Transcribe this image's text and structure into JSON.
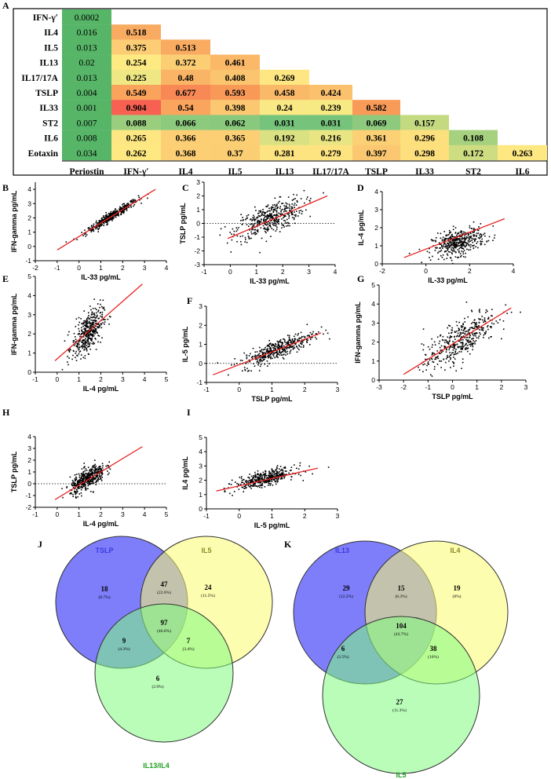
{
  "panels": {
    "A": "A",
    "B": "B",
    "C": "C",
    "D": "D",
    "E": "E",
    "F": "F",
    "G": "G",
    "H": "H",
    "I": "I",
    "J": "J",
    "K": "K"
  },
  "heatmap": {
    "row_labels": [
      "IFN-γʹ",
      "IL4",
      "IL5",
      "IL13",
      "IL17/17A",
      "TSLP",
      "IL33",
      "ST2",
      "IL6",
      "Eotaxin"
    ],
    "col_labels": [
      "Periostin",
      "IFN-γʹ",
      "IL4",
      "IL5",
      "IL13",
      "IL17/17A",
      "TSLP",
      "IL33",
      "ST2",
      "IL6"
    ],
    "cells": [
      [
        "0.0002"
      ],
      [
        "0.016",
        "0.518"
      ],
      [
        "0.013",
        "0.375",
        "0.513"
      ],
      [
        "0.02",
        "0.254",
        "0.372",
        "0.461"
      ],
      [
        "0.013",
        "0.225",
        "0.48",
        "0.408",
        "0.269"
      ],
      [
        "0.004",
        "0.549",
        "0.677",
        "0.593",
        "0.458",
        "0.424"
      ],
      [
        "0.001",
        "0.904",
        "0.54",
        "0.398",
        "0.24",
        "0.239",
        "0.582"
      ],
      [
        "0.007",
        "0.088",
        "0.066",
        "0.062",
        "0.031",
        "0.031",
        "0.069",
        "0.157"
      ],
      [
        "0.008",
        "0.265",
        "0.366",
        "0.365",
        "0.192",
        "0.216",
        "0.361",
        "0.296",
        "0.108"
      ],
      [
        "0.034",
        "0.262",
        "0.368",
        "0.37",
        "0.281",
        "0.279",
        "0.397",
        "0.298",
        "0.172",
        "0.263"
      ]
    ]
  },
  "chart_data": [
    {
      "id": "B",
      "type": "scatter",
      "xlabel": "IL-33 pg/mL",
      "ylabel": "IFN-gamma pg/mL",
      "xlim": [
        -2,
        4
      ],
      "ylim": [
        -1,
        4.5
      ],
      "xticks": [
        -2,
        -1,
        0,
        1,
        2,
        3,
        4
      ],
      "yticks": [
        -1,
        0,
        1,
        2,
        3,
        4
      ],
      "x_center": 1.5,
      "x_spread": 0.6,
      "slope": 0.95,
      "intercept": 0.7,
      "noise": 0.15,
      "fit": [
        [
          -1,
          -0.25
        ],
        [
          3.5,
          4.0
        ]
      ],
      "zero_line": false
    },
    {
      "id": "C",
      "type": "scatter",
      "xlabel": "IL-33 pg/mL",
      "ylabel": "TSLP pg/mL",
      "xlim": [
        -1,
        4
      ],
      "ylim": [
        -3,
        3
      ],
      "xticks": [
        -1,
        0,
        1,
        2,
        3,
        4
      ],
      "yticks": [
        -3,
        -2,
        -1,
        0,
        1,
        2,
        3
      ],
      "x_center": 1.5,
      "x_spread": 0.65,
      "slope": 0.7,
      "intercept": -0.7,
      "noise": 0.55,
      "fit": [
        [
          -0.1,
          -1.1
        ],
        [
          3.7,
          2.0
        ]
      ],
      "zero_line": true
    },
    {
      "id": "D",
      "type": "scatter",
      "xlabel": "IL-33 pg/mL",
      "ylabel": "IL-4 pg/mL",
      "xlim": [
        -2,
        4
      ],
      "ylim": [
        0,
        4
      ],
      "xticks": [
        -2,
        0,
        2,
        4
      ],
      "yticks": [
        0,
        1,
        2,
        3,
        4
      ],
      "x_center": 1.5,
      "x_spread": 0.6,
      "slope": 0.3,
      "intercept": 0.75,
      "noise": 0.35,
      "fit": [
        [
          -1,
          0.35
        ],
        [
          3.6,
          2.5
        ]
      ],
      "zero_line": false
    },
    {
      "id": "E",
      "type": "scatter",
      "xlabel": "IL-4 pg/mL",
      "ylabel": "IFN-gamma pg/mL",
      "xlim": [
        -1,
        5
      ],
      "ylim": [
        0,
        5
      ],
      "xticks": [
        -1,
        0,
        1,
        2,
        3,
        4,
        5
      ],
      "yticks": [
        0,
        1,
        2,
        3,
        4,
        5
      ],
      "x_center": 1.4,
      "x_spread": 0.35,
      "slope": 1.0,
      "intercept": 0.65,
      "noise": 0.5,
      "fit": [
        [
          -0.1,
          0.6
        ],
        [
          3.9,
          4.6
        ]
      ],
      "zero_line": false
    },
    {
      "id": "F",
      "type": "scatter",
      "xlabel": "TSLP pg/mL",
      "ylabel": "IL-5 pg/mL",
      "xlim": [
        -1,
        3
      ],
      "ylim": [
        -1,
        3
      ],
      "xticks": [
        -1,
        0,
        1,
        2,
        3
      ],
      "yticks": [
        -1,
        0,
        1,
        2,
        3
      ],
      "x_center": 1.2,
      "x_spread": 0.55,
      "slope": 0.68,
      "intercept": -0.05,
      "noise": 0.25,
      "fit": [
        [
          -0.8,
          -0.6
        ],
        [
          2.5,
          1.6
        ]
      ],
      "zero_line": true
    },
    {
      "id": "G",
      "type": "scatter",
      "xlabel": "TSLP pg/mL",
      "ylabel": "IFN-gamma pg/mL",
      "xlim": [
        -3,
        3
      ],
      "ylim": [
        0,
        5
      ],
      "xticks": [
        -3,
        -2,
        -1,
        0,
        1,
        2,
        3
      ],
      "yticks": [
        0,
        1,
        2,
        3,
        4,
        5
      ],
      "x_center": 0.3,
      "x_spread": 0.75,
      "slope": 0.8,
      "intercept": 1.85,
      "noise": 0.5,
      "fit": [
        [
          -2,
          0.3
        ],
        [
          2.4,
          3.8
        ]
      ],
      "zero_line": false
    },
    {
      "id": "H",
      "type": "scatter",
      "xlabel": "IL-4 pg/mL",
      "ylabel": "TSLP pg/mL",
      "xlim": [
        -1,
        5
      ],
      "ylim": [
        -2,
        4
      ],
      "xticks": [
        -1,
        0,
        1,
        2,
        3,
        4,
        5
      ],
      "yticks": [
        -2,
        -1,
        0,
        1,
        2,
        3,
        4
      ],
      "x_center": 1.4,
      "x_spread": 0.4,
      "slope": 1.05,
      "intercept": -1.05,
      "noise": 0.45,
      "fit": [
        [
          -0.1,
          -1.35
        ],
        [
          3.9,
          3.15
        ]
      ],
      "zero_line": true
    },
    {
      "id": "I",
      "type": "scatter",
      "xlabel": "IL-5 pg/mL",
      "ylabel": "IL4 pg/mL",
      "xlim": [
        -1,
        3
      ],
      "ylim": [
        0,
        5
      ],
      "xticks": [
        -1,
        0,
        1,
        2,
        3
      ],
      "yticks": [
        0,
        1,
        2,
        3,
        4,
        5
      ],
      "x_center": 0.8,
      "x_spread": 0.45,
      "slope": 0.52,
      "intercept": 1.72,
      "noise": 0.25,
      "fit": [
        [
          -0.7,
          1.25
        ],
        [
          2.4,
          2.85
        ]
      ],
      "zero_line": false
    }
  ],
  "venn_J": {
    "set_labels": {
      "a": "TSLP",
      "b": "IL5",
      "c": "IL13/IL4"
    },
    "regions": {
      "a_only": {
        "n": "18",
        "p": "(8.7%)"
      },
      "ab": {
        "n": "47",
        "p": "(22.6%)"
      },
      "b_only": {
        "n": "24",
        "p": "(11.5%)"
      },
      "abc": {
        "n": "97",
        "p": "(46.6%)"
      },
      "ac": {
        "n": "9",
        "p": "(4.3%)"
      },
      "bc": {
        "n": "7",
        "p": "(3.4%)"
      },
      "c_only": {
        "n": "6",
        "p": "(2.9%)"
      }
    }
  },
  "venn_K": {
    "set_labels": {
      "a": "IL13",
      "b": "IL4",
      "c": "IL5"
    },
    "regions": {
      "a_only": {
        "n": "29",
        "p": "(12.2%)"
      },
      "ab": {
        "n": "15",
        "p": "(6.3%)"
      },
      "b_only": {
        "n": "19",
        "p": "(8%)"
      },
      "abc": {
        "n": "104",
        "p": "(43.7%)"
      },
      "ac": {
        "n": "6",
        "p": "(2.5%)"
      },
      "bc": {
        "n": "38",
        "p": "(16%)"
      },
      "c_only": {
        "n": "27",
        "p": "(11.3%)"
      }
    }
  },
  "colors": {
    "venn_blue": "#7b7bfb",
    "venn_yellow": "#fbfb6e",
    "venn_green": "#7ffb7f",
    "label_blue": "#3a3ae0",
    "label_olive": "#8a8a2a",
    "label_green": "#1e9e1e",
    "fit_line": "#e82020",
    "periostin_green": "#57b568"
  }
}
